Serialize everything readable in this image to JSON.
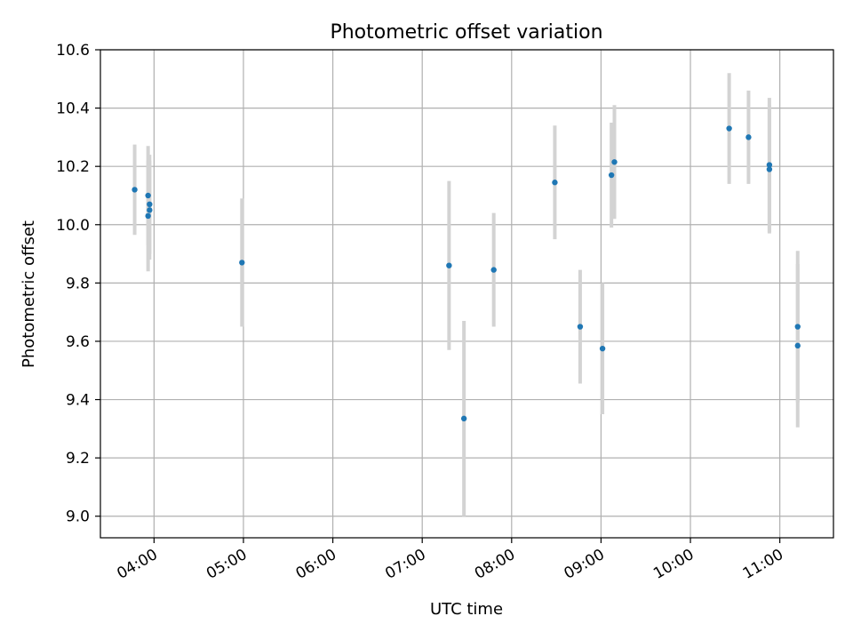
{
  "chart_data": {
    "type": "scatter",
    "title": "Photometric offset variation",
    "xlabel": "UTC time",
    "ylabel": "Photometric offset",
    "xlim": [
      "03:24",
      "11:36"
    ],
    "ylim": [
      8.926,
      10.6
    ],
    "xticks": [
      "04:00",
      "05:00",
      "06:00",
      "07:00",
      "08:00",
      "09:00",
      "10:00",
      "11:00"
    ],
    "yticks": [
      "9.0",
      "9.2",
      "9.4",
      "9.6",
      "9.8",
      "10.0",
      "10.2",
      "10.4",
      "10.6"
    ],
    "grid": true,
    "colors": {
      "marker": "#1f77b4",
      "errorbar": "#d3d3d3",
      "grid": "#b0b0b0"
    },
    "series": [
      {
        "points": [
          {
            "x": "03:47",
            "y": 10.12,
            "yerr": 0.155
          },
          {
            "x": "03:56",
            "y": 10.1,
            "yerr": 0.17
          },
          {
            "x": "03:57",
            "y": 10.07,
            "yerr": 0.17
          },
          {
            "x": "03:57",
            "y": 10.05,
            "yerr": 0.17
          },
          {
            "x": "03:56",
            "y": 10.03,
            "yerr": 0.19
          },
          {
            "x": "04:59",
            "y": 9.87,
            "yerr": 0.22
          },
          {
            "x": "07:18",
            "y": 9.86,
            "yerr": 0.29
          },
          {
            "x": "07:28",
            "y": 9.335,
            "yerr": 0.335
          },
          {
            "x": "07:48",
            "y": 9.845,
            "yerr": 0.195
          },
          {
            "x": "08:29",
            "y": 10.145,
            "yerr": 0.195
          },
          {
            "x": "08:46",
            "y": 9.65,
            "yerr": 0.195
          },
          {
            "x": "09:01",
            "y": 9.575,
            "yerr": 0.225
          },
          {
            "x": "09:07",
            "y": 10.17,
            "yerr": 0.18
          },
          {
            "x": "09:09",
            "y": 10.215,
            "yerr": 0.195
          },
          {
            "x": "10:26",
            "y": 10.33,
            "yerr": 0.19
          },
          {
            "x": "10:39",
            "y": 10.3,
            "yerr": 0.16
          },
          {
            "x": "10:53",
            "y": 10.205,
            "yerr": 0.23
          },
          {
            "x": "10:53",
            "y": 10.19,
            "yerr": 0.22
          },
          {
            "x": "11:12",
            "y": 9.65,
            "yerr": 0.26
          },
          {
            "x": "11:12",
            "y": 9.585,
            "yerr": 0.28
          }
        ]
      }
    ]
  }
}
